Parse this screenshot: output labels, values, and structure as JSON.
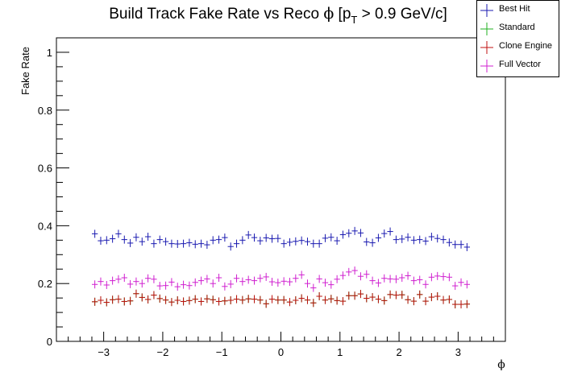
{
  "chart_data": {
    "type": "scatter",
    "title_main": "Build Track Fake Rate vs Reco ",
    "title_phi": "ϕ",
    "title_p": " [p",
    "title_sub": "T",
    "title_rest": " > 0.9 GeV/c]",
    "xlabel": "ϕ",
    "ylabel": "Fake Rate",
    "xlim": [
      -3.8,
      3.8
    ],
    "ylim": [
      0,
      1.05
    ],
    "xticks": [
      -3,
      -2,
      -1,
      0,
      1,
      2,
      3
    ],
    "xtick_labels": [
      "−3",
      "−2",
      "−1",
      "0",
      "1",
      "2",
      "3"
    ],
    "yticks": [
      0,
      0.2,
      0.4,
      0.6,
      0.8,
      1
    ],
    "ytick_labels": [
      "0",
      "0.2",
      "0.4",
      "0.6",
      "0.8",
      "1"
    ],
    "grid": false,
    "legend_position": "top-right",
    "x": [
      -3.15,
      -3.05,
      -2.95,
      -2.85,
      -2.75,
      -2.65,
      -2.55,
      -2.45,
      -2.35,
      -2.25,
      -2.15,
      -2.05,
      -1.95,
      -1.85,
      -1.75,
      -1.65,
      -1.55,
      -1.45,
      -1.35,
      -1.25,
      -1.15,
      -1.05,
      -0.95,
      -0.85,
      -0.75,
      -0.65,
      -0.55,
      -0.45,
      -0.35,
      -0.25,
      -0.15,
      -0.05,
      0.05,
      0.15,
      0.25,
      0.35,
      0.45,
      0.55,
      0.65,
      0.75,
      0.85,
      0.95,
      1.05,
      1.15,
      1.25,
      1.35,
      1.45,
      1.55,
      1.65,
      1.75,
      1.85,
      1.95,
      2.05,
      2.15,
      2.25,
      2.35,
      2.45,
      2.55,
      2.65,
      2.75,
      2.85,
      2.95,
      3.05,
      3.15
    ],
    "series": [
      {
        "name": "Best Hit",
        "color": "#1a1ab0",
        "values": [
          0.372,
          0.348,
          0.35,
          0.355,
          0.372,
          0.352,
          0.34,
          0.36,
          0.345,
          0.362,
          0.338,
          0.352,
          0.345,
          0.338,
          0.337,
          0.338,
          0.341,
          0.336,
          0.338,
          0.334,
          0.35,
          0.352,
          0.359,
          0.328,
          0.338,
          0.35,
          0.368,
          0.359,
          0.348,
          0.358,
          0.355,
          0.356,
          0.338,
          0.343,
          0.346,
          0.349,
          0.345,
          0.338,
          0.338,
          0.357,
          0.36,
          0.348,
          0.369,
          0.374,
          0.382,
          0.375,
          0.344,
          0.341,
          0.358,
          0.373,
          0.38,
          0.352,
          0.354,
          0.36,
          0.35,
          0.352,
          0.347,
          0.362,
          0.356,
          0.352,
          0.342,
          0.335,
          0.335,
          0.326
        ]
      },
      {
        "name": "Standard",
        "color": "#20b020",
        "values": [
          0.137,
          0.142,
          0.135,
          0.144,
          0.146,
          0.138,
          0.14,
          0.165,
          0.152,
          0.145,
          0.16,
          0.148,
          0.143,
          0.136,
          0.142,
          0.138,
          0.141,
          0.146,
          0.138,
          0.147,
          0.144,
          0.138,
          0.14,
          0.142,
          0.146,
          0.143,
          0.147,
          0.146,
          0.143,
          0.13,
          0.146,
          0.143,
          0.143,
          0.136,
          0.142,
          0.149,
          0.143,
          0.133,
          0.156,
          0.143,
          0.147,
          0.141,
          0.139,
          0.158,
          0.158,
          0.164,
          0.149,
          0.153,
          0.146,
          0.141,
          0.162,
          0.16,
          0.161,
          0.144,
          0.139,
          0.162,
          0.139,
          0.153,
          0.156,
          0.143,
          0.145,
          0.128,
          0.128,
          0.129
        ]
      },
      {
        "name": "Clone Engine",
        "color": "#c01010",
        "values": [
          0.137,
          0.142,
          0.135,
          0.144,
          0.146,
          0.138,
          0.14,
          0.165,
          0.152,
          0.145,
          0.16,
          0.148,
          0.143,
          0.136,
          0.142,
          0.138,
          0.141,
          0.146,
          0.138,
          0.147,
          0.144,
          0.138,
          0.14,
          0.142,
          0.146,
          0.143,
          0.147,
          0.146,
          0.143,
          0.13,
          0.146,
          0.143,
          0.143,
          0.136,
          0.142,
          0.149,
          0.143,
          0.133,
          0.156,
          0.143,
          0.147,
          0.141,
          0.139,
          0.158,
          0.158,
          0.164,
          0.149,
          0.153,
          0.146,
          0.141,
          0.162,
          0.16,
          0.161,
          0.144,
          0.139,
          0.162,
          0.139,
          0.153,
          0.156,
          0.143,
          0.145,
          0.128,
          0.128,
          0.129
        ]
      },
      {
        "name": "Full Vector",
        "color": "#d020d0",
        "values": [
          0.197,
          0.207,
          0.195,
          0.21,
          0.215,
          0.22,
          0.198,
          0.207,
          0.2,
          0.218,
          0.215,
          0.192,
          0.193,
          0.205,
          0.189,
          0.196,
          0.193,
          0.204,
          0.21,
          0.216,
          0.2,
          0.22,
          0.19,
          0.198,
          0.218,
          0.207,
          0.213,
          0.21,
          0.218,
          0.223,
          0.206,
          0.203,
          0.208,
          0.206,
          0.218,
          0.23,
          0.2,
          0.185,
          0.216,
          0.203,
          0.196,
          0.215,
          0.228,
          0.24,
          0.245,
          0.225,
          0.232,
          0.21,
          0.202,
          0.218,
          0.216,
          0.215,
          0.22,
          0.227,
          0.21,
          0.213,
          0.197,
          0.222,
          0.226,
          0.224,
          0.222,
          0.192,
          0.204,
          0.197
        ]
      }
    ]
  }
}
